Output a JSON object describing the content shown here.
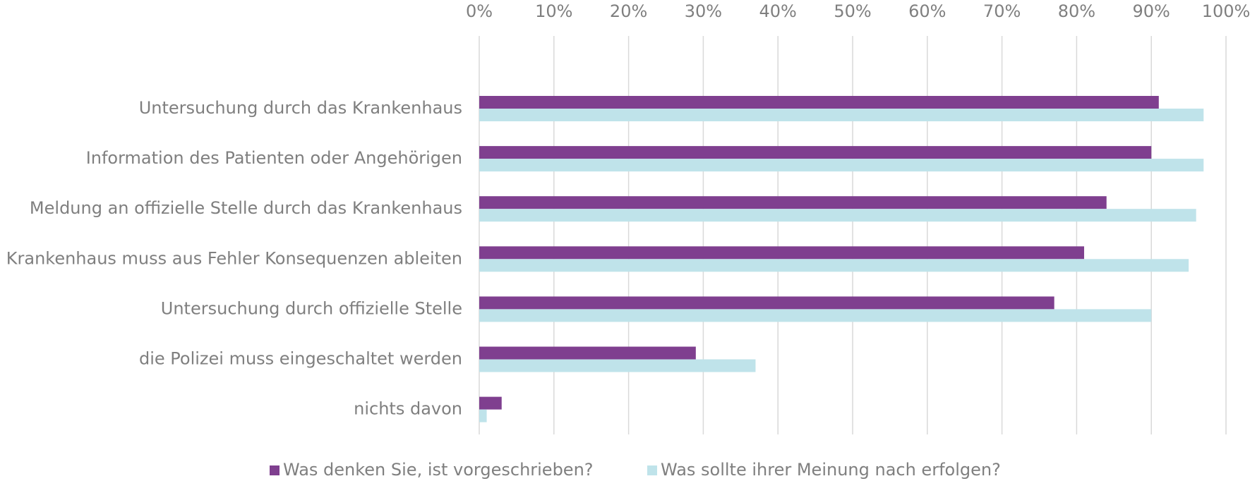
{
  "chart_data": {
    "type": "bar",
    "orientation": "horizontal",
    "categories": [
      "Untersuchung durch das Krankenhaus",
      "Information des Patienten oder Angehörigen",
      "Meldung an offizielle Stelle durch das Krankenhaus",
      "Krankenhaus muss aus Fehler Konsequenzen ableiten",
      "Untersuchung durch offizielle Stelle",
      "die Polizei muss eingeschaltet werden",
      "nichts davon"
    ],
    "series": [
      {
        "name": "Was denken Sie, ist vorgeschrieben?",
        "color": "#7f3f8f",
        "values": [
          91,
          90,
          84,
          81,
          77,
          29,
          3
        ]
      },
      {
        "name": "Was sollte ihrer Meinung nach erfolgen?",
        "color": "#bfe3ea",
        "values": [
          97,
          97,
          96,
          95,
          90,
          37,
          1
        ]
      }
    ],
    "xlim": [
      0,
      100
    ],
    "xticks": [
      {
        "value": 0,
        "label": "0%"
      },
      {
        "value": 10,
        "label": "10%"
      },
      {
        "value": 20,
        "label": "20%"
      },
      {
        "value": 30,
        "label": "30%"
      },
      {
        "value": 40,
        "label": "40%"
      },
      {
        "value": 50,
        "label": "50%"
      },
      {
        "value": 60,
        "label": "60%"
      },
      {
        "value": 70,
        "label": "70%"
      },
      {
        "value": 80,
        "label": "80%"
      },
      {
        "value": 90,
        "label": "90%"
      },
      {
        "value": 100,
        "label": "100%"
      }
    ],
    "grid": true,
    "legend": "bottom"
  }
}
